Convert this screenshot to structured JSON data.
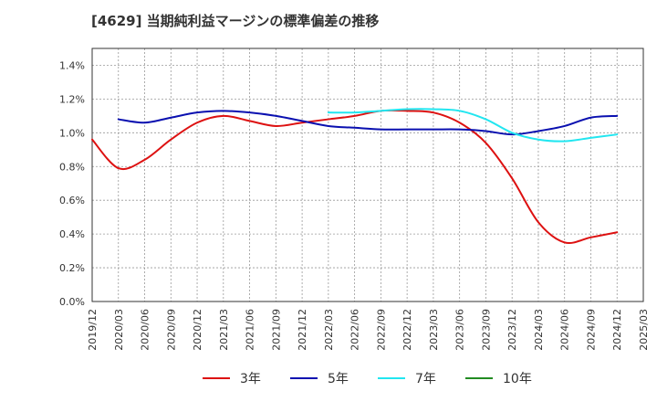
{
  "chart_data": {
    "type": "line",
    "title": "[4629]  当期純利益マージンの標準偏差の推移",
    "xlabel": "",
    "ylabel": "",
    "x": [
      "2019/12",
      "2020/03",
      "2020/06",
      "2020/09",
      "2020/12",
      "2021/03",
      "2021/06",
      "2021/09",
      "2021/12",
      "2022/03",
      "2022/06",
      "2022/09",
      "2022/12",
      "2023/03",
      "2023/06",
      "2023/09",
      "2023/12",
      "2024/03",
      "2024/06",
      "2024/09",
      "2024/12"
    ],
    "x_ticks": [
      "2019/12",
      "2020/03",
      "2020/06",
      "2020/09",
      "2020/12",
      "2021/03",
      "2021/06",
      "2021/09",
      "2021/12",
      "2022/03",
      "2022/06",
      "2022/09",
      "2022/12",
      "2023/03",
      "2023/06",
      "2023/09",
      "2023/12",
      "2024/03",
      "2024/06",
      "2024/09",
      "2024/12",
      "2025/03"
    ],
    "y_ticks": [
      "0.0%",
      "0.2%",
      "0.4%",
      "0.6%",
      "0.8%",
      "1.0%",
      "1.2%",
      "1.4%"
    ],
    "ylim": [
      0,
      1.5
    ],
    "grid": true,
    "legend_position": "bottom",
    "series": [
      {
        "name": "3年",
        "color": "#dd1111",
        "values": [
          0.96,
          0.79,
          0.84,
          0.96,
          1.06,
          1.1,
          1.07,
          1.04,
          1.06,
          1.08,
          1.1,
          1.13,
          1.13,
          1.12,
          1.06,
          0.94,
          0.73,
          0.47,
          0.35,
          0.38,
          0.41
        ]
      },
      {
        "name": "5年",
        "color": "#0a10b0",
        "values": [
          null,
          1.08,
          1.06,
          1.09,
          1.12,
          1.13,
          1.12,
          1.1,
          1.07,
          1.04,
          1.03,
          1.02,
          1.02,
          1.02,
          1.02,
          1.01,
          0.99,
          1.01,
          1.04,
          1.09,
          1.1
        ]
      },
      {
        "name": "7年",
        "color": "#22e6f0",
        "values": [
          null,
          null,
          null,
          null,
          null,
          null,
          null,
          null,
          null,
          1.12,
          1.12,
          1.13,
          1.14,
          1.14,
          1.13,
          1.08,
          1.0,
          0.96,
          0.95,
          0.97,
          0.99
        ]
      },
      {
        "name": "10年",
        "color": "#228b22",
        "values": [
          null,
          null,
          null,
          null,
          null,
          null,
          null,
          null,
          null,
          null,
          null,
          null,
          null,
          null,
          null,
          null,
          null,
          null,
          null,
          null,
          null
        ]
      }
    ]
  }
}
